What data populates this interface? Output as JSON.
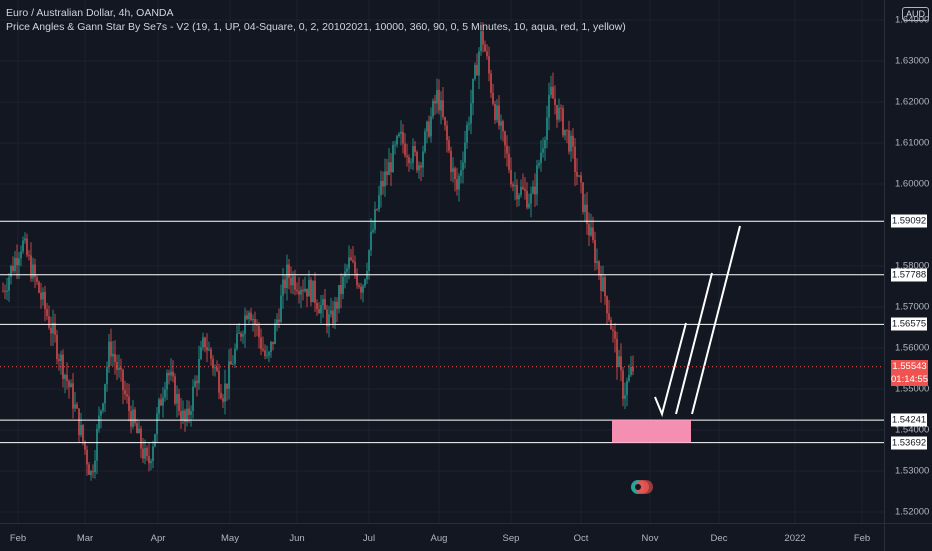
{
  "header": {
    "title": "Euro / Australian Dollar, 4h, OANDA",
    "indicator": "Price Angles & Gann Star By Se7s - V2 (19, 1, UP, 04-Square, 0, 2, 20102021, 10000, 360, 90, 0, 5 Minutes, 10, aqua, red, 1, yellow)"
  },
  "price_scale": {
    "currency": "AUD",
    "ticks": [
      "1.64000",
      "1.63000",
      "1.62000",
      "1.61000",
      "1.60000",
      "1.58000",
      "1.57000",
      "1.56000",
      "1.55000",
      "1.54000",
      "1.53000",
      "1.52000"
    ],
    "levels": [
      "1.59092",
      "1.57788",
      "1.56575",
      "1.54241",
      "1.53692"
    ],
    "current_price": "1.55543",
    "countdown": "01:14:55"
  },
  "time_axis": {
    "labels": [
      "Feb",
      "Mar",
      "Apr",
      "May",
      "Jun",
      "Jul",
      "Aug",
      "Sep",
      "Oct",
      "Nov",
      "Dec",
      "2022",
      "Feb"
    ]
  },
  "colors": {
    "background": "#131722",
    "up_candle": "#26a69a",
    "down_candle": "#ef5350",
    "level_line": "#ffffff",
    "target_zone": "#f48fb1",
    "current_price_line": "#ef5350"
  },
  "chart_data": {
    "type": "candlestick",
    "symbol": "EURAUD",
    "timeframe": "4h",
    "ylim": [
      1.515,
      1.645
    ],
    "horizontal_levels": [
      1.59092,
      1.57788,
      1.56575,
      1.54241,
      1.53692
    ],
    "current_price": 1.55543,
    "target_zone": {
      "from_price": 1.53692,
      "to_price": 1.54241
    },
    "anchors": [
      {
        "t": 0.0,
        "p": 1.574
      },
      {
        "t": 0.03,
        "p": 1.586
      },
      {
        "t": 0.07,
        "p": 1.568
      },
      {
        "t": 0.11,
        "p": 1.548
      },
      {
        "t": 0.14,
        "p": 1.529
      },
      {
        "t": 0.17,
        "p": 1.561
      },
      {
        "t": 0.2,
        "p": 1.545
      },
      {
        "t": 0.23,
        "p": 1.531
      },
      {
        "t": 0.26,
        "p": 1.555
      },
      {
        "t": 0.29,
        "p": 1.541
      },
      {
        "t": 0.32,
        "p": 1.562
      },
      {
        "t": 0.35,
        "p": 1.549
      },
      {
        "t": 0.39,
        "p": 1.571
      },
      {
        "t": 0.42,
        "p": 1.556
      },
      {
        "t": 0.45,
        "p": 1.578
      },
      {
        "t": 0.49,
        "p": 1.574
      },
      {
        "t": 0.52,
        "p": 1.566
      },
      {
        "t": 0.55,
        "p": 1.581
      },
      {
        "t": 0.57,
        "p": 1.575
      },
      {
        "t": 0.6,
        "p": 1.599
      },
      {
        "t": 0.63,
        "p": 1.611
      },
      {
        "t": 0.66,
        "p": 1.605
      },
      {
        "t": 0.69,
        "p": 1.622
      },
      {
        "t": 0.72,
        "p": 1.598
      },
      {
        "t": 0.74,
        "p": 1.617
      },
      {
        "t": 0.76,
        "p": 1.637
      },
      {
        "t": 0.78,
        "p": 1.619
      },
      {
        "t": 0.81,
        "p": 1.6
      },
      {
        "t": 0.84,
        "p": 1.596
      },
      {
        "t": 0.87,
        "p": 1.622
      },
      {
        "t": 0.9,
        "p": 1.61
      },
      {
        "t": 0.93,
        "p": 1.589
      },
      {
        "t": 0.96,
        "p": 1.57
      },
      {
        "t": 0.985,
        "p": 1.549
      },
      {
        "t": 1.0,
        "p": 1.555
      }
    ]
  }
}
